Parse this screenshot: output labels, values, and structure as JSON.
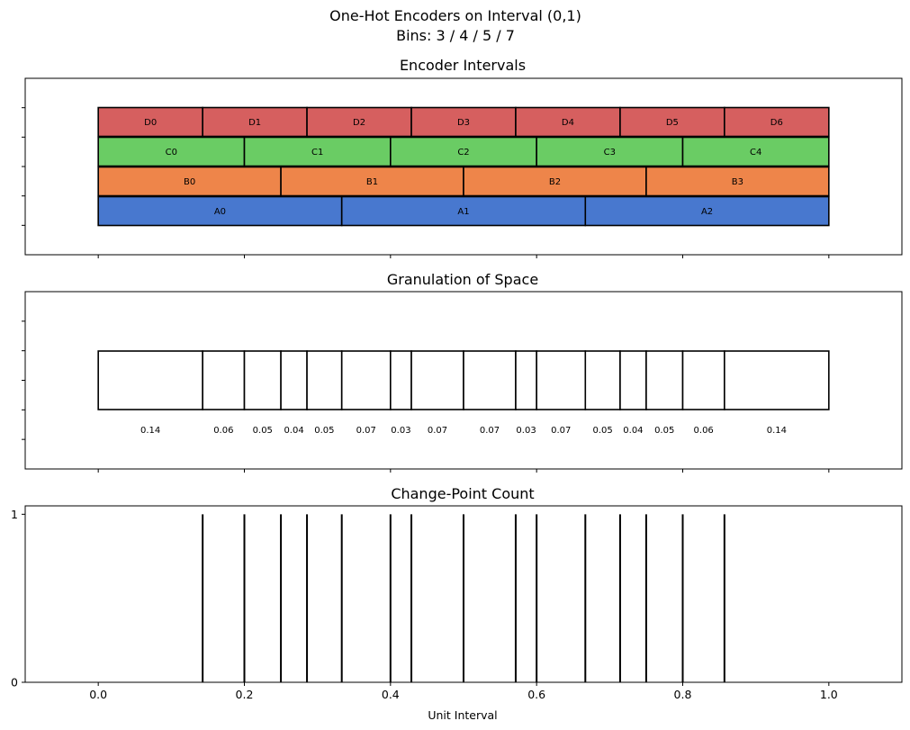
{
  "figure": {
    "title_line1": "One-Hot Encoders on Interval (0,1)",
    "title_line2": "Bins: 3 / 4 / 5 / 7"
  },
  "chart_data": [
    {
      "type": "bar",
      "title": "Encoder Intervals",
      "xlim": [
        -0.1,
        1.1
      ],
      "encoders": [
        {
          "name": "A",
          "color": "#4878cf",
          "labels": [
            "A0",
            "A1",
            "A2"
          ],
          "edges": [
            0,
            0.3333,
            0.6667,
            1.0
          ]
        },
        {
          "name": "B",
          "color": "#ee854a",
          "labels": [
            "B0",
            "B1",
            "B2",
            "B3"
          ],
          "edges": [
            0,
            0.25,
            0.5,
            0.75,
            1.0
          ]
        },
        {
          "name": "C",
          "color": "#6acc64",
          "labels": [
            "C0",
            "C1",
            "C2",
            "C3",
            "C4"
          ],
          "edges": [
            0,
            0.2,
            0.4,
            0.6,
            0.8,
            1.0
          ]
        },
        {
          "name": "D",
          "color": "#d65f5f",
          "labels": [
            "D0",
            "D1",
            "D2",
            "D3",
            "D4",
            "D5",
            "D6"
          ],
          "edges": [
            0,
            0.1429,
            0.2857,
            0.4286,
            0.5714,
            0.7143,
            0.8571,
            1.0
          ]
        }
      ]
    },
    {
      "type": "bar",
      "title": "Granulation of Space",
      "xlim": [
        -0.1,
        1.1
      ],
      "edges": [
        0,
        0.1429,
        0.2,
        0.25,
        0.2857,
        0.3333,
        0.4,
        0.4286,
        0.5,
        0.5714,
        0.6,
        0.6667,
        0.7143,
        0.75,
        0.8,
        0.8571,
        1.0
      ],
      "width_labels": [
        "0.14",
        "0.06",
        "0.05",
        "0.04",
        "0.05",
        "0.07",
        "0.03",
        "0.07",
        "0.07",
        "0.03",
        "0.07",
        "0.05",
        "0.04",
        "0.05",
        "0.06",
        "0.14"
      ]
    },
    {
      "type": "bar",
      "title": "Change-Point Count",
      "xlabel": "Unit Interval",
      "xlim": [
        -0.1,
        1.1
      ],
      "ylim": [
        0,
        1.05
      ],
      "yticks": [
        0,
        1
      ],
      "x": [
        0.1429,
        0.2,
        0.25,
        0.2857,
        0.3333,
        0.4,
        0.4286,
        0.5,
        0.5714,
        0.6,
        0.6667,
        0.7143,
        0.75,
        0.8,
        0.8571
      ],
      "values": [
        1,
        1,
        1,
        1,
        1,
        1,
        1,
        1,
        1,
        1,
        1,
        1,
        1,
        1,
        1
      ]
    }
  ],
  "xticks": [
    {
      "value": 0.0,
      "label": "0.0"
    },
    {
      "value": 0.2,
      "label": "0.2"
    },
    {
      "value": 0.4,
      "label": "0.4"
    },
    {
      "value": 0.6,
      "label": "0.6"
    },
    {
      "value": 0.8,
      "label": "0.8"
    },
    {
      "value": 1.0,
      "label": "1.0"
    }
  ]
}
